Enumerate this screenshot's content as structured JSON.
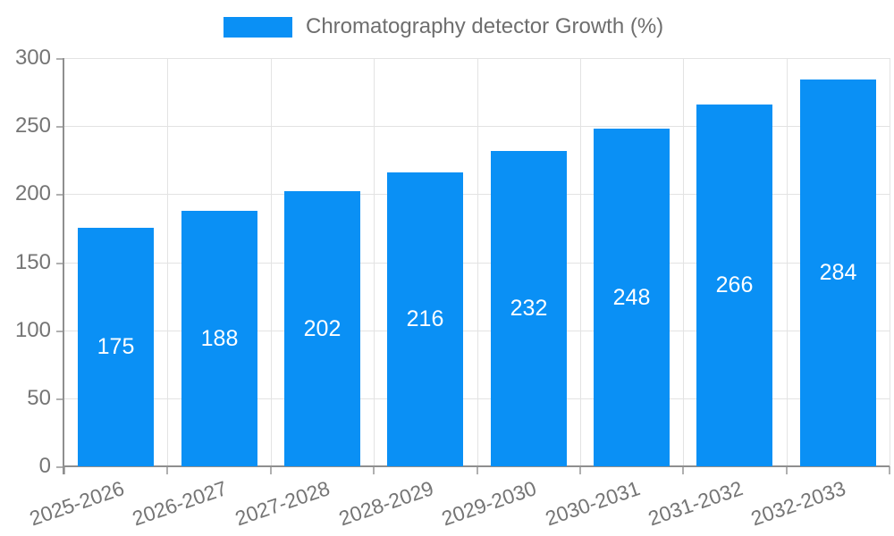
{
  "legend": {
    "label": "Chromatography detector Growth (%)"
  },
  "chart_data": {
    "type": "bar",
    "title": "Chromatography detector Growth (%)",
    "categories": [
      "2025-2026",
      "2026-2027",
      "2027-2028",
      "2028-2029",
      "2029-2030",
      "2030-2031",
      "2031-2032",
      "2032-2033"
    ],
    "values": [
      175,
      188,
      202,
      216,
      232,
      248,
      266,
      284
    ],
    "xlabel": "",
    "ylabel": "",
    "ylim": [
      0,
      300
    ],
    "yticks": [
      0,
      50,
      100,
      150,
      200,
      250,
      300
    ],
    "grid": true,
    "legend_position": "top-center",
    "value_label_position": "inside-center",
    "x_tick_rotation_deg": -19,
    "colors": {
      "bar": "#0a90f5",
      "bar_label": "#ffffff",
      "grid": "#e3e3e3",
      "axis": "#8f8f8f",
      "tick": "#b0b0b0",
      "tick_label": "#757575",
      "legend_text": "#6e6e6e",
      "background": "#ffffff"
    }
  }
}
